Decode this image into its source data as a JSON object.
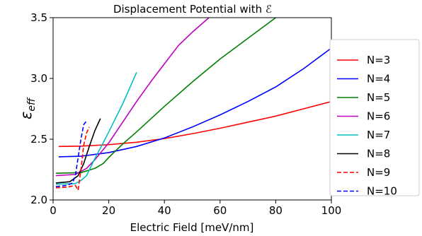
{
  "chart_data": {
    "type": "line",
    "title": "Displacement Potential with ℰ",
    "xlabel": "Electric Field [meV/nm]",
    "ylabel_main": "ε",
    "ylabel_sub": "eff",
    "xlim": [
      0,
      100
    ],
    "ylim": [
      2.0,
      3.5
    ],
    "xticks": [
      0,
      20,
      40,
      60,
      80,
      100
    ],
    "yticks": [
      2.0,
      2.5,
      3.0,
      3.5
    ],
    "xtick_labels": [
      "0",
      "20",
      "40",
      "60",
      "80",
      "100"
    ],
    "ytick_labels": [
      "2.0",
      "2.5",
      "3.0",
      "3.5"
    ],
    "grid": false,
    "legend_position": "right, outside plot",
    "series": [
      {
        "name": "N=3",
        "color": "#ff0000",
        "dash": "solid",
        "x": [
          2,
          10,
          20,
          30,
          40,
          50,
          60,
          70,
          80,
          90,
          100
        ],
        "y": [
          2.44,
          2.443,
          2.455,
          2.475,
          2.505,
          2.545,
          2.59,
          2.64,
          2.69,
          2.75,
          2.81
        ]
      },
      {
        "name": "N=4",
        "color": "#0000ff",
        "dash": "solid",
        "x": [
          2,
          10,
          20,
          30,
          40,
          50,
          60,
          70,
          80,
          90,
          100
        ],
        "y": [
          2.355,
          2.36,
          2.39,
          2.44,
          2.51,
          2.6,
          2.7,
          2.81,
          2.93,
          3.08,
          3.25
        ]
      },
      {
        "name": "N=5",
        "color": "#008000",
        "dash": "solid",
        "x": [
          1,
          10,
          15,
          18,
          20,
          25,
          30,
          40,
          50,
          60,
          70,
          80
        ],
        "y": [
          2.22,
          2.225,
          2.26,
          2.3,
          2.35,
          2.46,
          2.56,
          2.77,
          2.97,
          3.16,
          3.33,
          3.5
        ]
      },
      {
        "name": "N=6",
        "color": "#bf00bf",
        "dash": "solid",
        "x": [
          1,
          8,
          12,
          15,
          20,
          25,
          30,
          35,
          40,
          45,
          50,
          56
        ],
        "y": [
          2.2,
          2.21,
          2.26,
          2.33,
          2.47,
          2.64,
          2.81,
          2.97,
          3.12,
          3.27,
          3.38,
          3.5
        ]
      },
      {
        "name": "N=7",
        "color": "#00bfbf",
        "dash": "solid",
        "x": [
          1,
          8,
          10,
          12,
          15,
          18,
          20,
          25,
          30
        ],
        "y": [
          2.13,
          2.135,
          2.16,
          2.2,
          2.34,
          2.47,
          2.56,
          2.79,
          3.05
        ]
      },
      {
        "name": "N=8",
        "color": "#000000",
        "dash": "solid",
        "x": [
          1,
          6,
          9,
          11,
          13,
          15,
          17
        ],
        "y": [
          2.14,
          2.15,
          2.2,
          2.3,
          2.44,
          2.57,
          2.67
        ]
      },
      {
        "name": "N=9",
        "color": "#ff0000",
        "dash": "dashed",
        "x": [
          1,
          5,
          8,
          9,
          10,
          11,
          12,
          13
        ],
        "y": [
          2.1,
          2.105,
          2.12,
          2.08,
          2.25,
          2.45,
          2.55,
          2.6
        ]
      },
      {
        "name": "N=10",
        "color": "#0000ff",
        "dash": "dashed",
        "x": [
          1,
          5,
          7,
          8,
          9,
          10,
          11,
          12
        ],
        "y": [
          2.11,
          2.12,
          2.14,
          2.2,
          2.35,
          2.5,
          2.62,
          2.65
        ]
      }
    ]
  }
}
